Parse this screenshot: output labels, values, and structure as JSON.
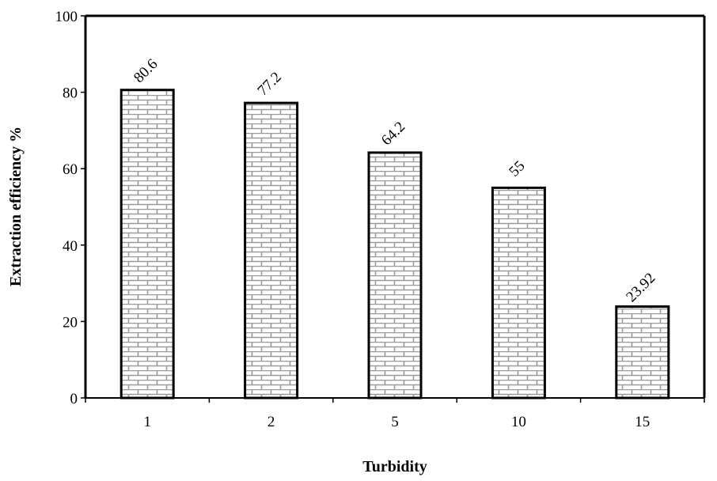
{
  "chart_data": {
    "type": "bar",
    "categories": [
      "1",
      "2",
      "5",
      "10",
      "15"
    ],
    "values": [
      80.6,
      77.2,
      64.2,
      55,
      23.92
    ],
    "data_labels": [
      "80.6",
      "77.2",
      "64.2",
      "55",
      "23.92"
    ],
    "title": "",
    "xlabel": "Turbidity",
    "ylabel": "Extraction efficiency %",
    "ylim": [
      0,
      100
    ],
    "yticks": [
      "0",
      "20",
      "40",
      "60",
      "80",
      "100"
    ],
    "grid": false,
    "legend": "none",
    "bar_pattern": "brick",
    "bar_fill": "#ffffff",
    "bar_pattern_color": "#9a9a9a",
    "bar_stroke": "#000000"
  }
}
